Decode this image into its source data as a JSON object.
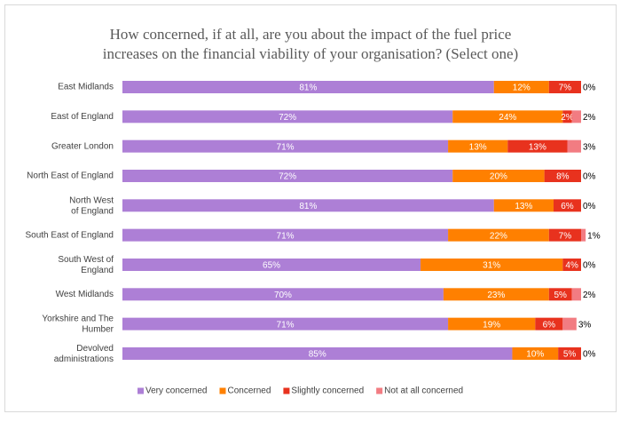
{
  "chart_data": {
    "type": "stacked-bar-horizontal",
    "title": "How concerned, if at all, are you about the impact of the fuel price increases on the financial viability of your organisation? (Select one)",
    "categories": [
      "East Midlands",
      "East of England",
      "Greater London",
      "North East of England",
      "North West of England",
      "South East of England",
      "South West of England",
      "West Midlands",
      "Yorkshire and The Humber",
      "Devolved administrations"
    ],
    "xlim": [
      0,
      100
    ],
    "legend": "bottom",
    "series": [
      {
        "name": "Very concerned",
        "color": "#ad7fd6",
        "values": [
          81,
          72,
          71,
          72,
          81,
          71,
          65,
          70,
          71,
          85
        ],
        "value_labels": [
          "81%",
          "72%",
          "71%",
          "72%",
          "81%",
          "71%",
          "65%",
          "70%",
          "71%",
          "85%"
        ]
      },
      {
        "name": "Concerned",
        "color": "#ff8000",
        "values": [
          12,
          24,
          13,
          20,
          13,
          22,
          31,
          23,
          19,
          10
        ],
        "value_labels": [
          "12%",
          "24%",
          "13%",
          "20%",
          "13%",
          "22%",
          "31%",
          "23%",
          "19%",
          "10%"
        ]
      },
      {
        "name": "Slightly concerned",
        "color": "#e8321e",
        "values": [
          7,
          2,
          13,
          8,
          6,
          7,
          4,
          5,
          6,
          5
        ],
        "value_labels": [
          "7%",
          "2%",
          "13%",
          "8%",
          "6%",
          "7%",
          "4%",
          "5%",
          "6%",
          "5%"
        ]
      },
      {
        "name": "Not at all concerned",
        "color": "#f27c82",
        "values": [
          0,
          2,
          3,
          0,
          0,
          1,
          0,
          2,
          3,
          0
        ],
        "value_labels": [
          "0%",
          "2%",
          "3%",
          "0%",
          "0%",
          "1%",
          "0%",
          "2%",
          "3%",
          "0%"
        ]
      }
    ]
  }
}
